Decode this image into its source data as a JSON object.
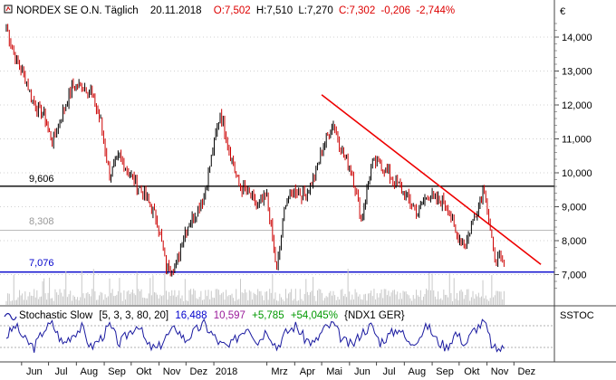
{
  "header": {
    "symbol": "NORDEX SE O.N. Täglich",
    "date": "20.11.2018",
    "open": "O:7,502",
    "high": "H:7,510",
    "low": "L:7,270",
    "close": "C:7,302",
    "change": "-0,206",
    "change_pct": "-2,744%"
  },
  "currency_label": "€",
  "colors": {
    "bar": "#000000",
    "down_bar": "#cc0000",
    "trendline": "#ee0000",
    "level_black": "#000000",
    "level_gray": "#bbbbbb",
    "level_blue": "#0000cc",
    "stoch_line": "#1a1aa0",
    "positive": "#009900",
    "negative": "#dd0000",
    "grid": "#d0d0d0"
  },
  "levels": [
    {
      "label": "9,606",
      "value": 9.606,
      "color": "level_black"
    },
    {
      "label": "8,308",
      "value": 8.308,
      "color": "level_gray"
    },
    {
      "label": "7,076",
      "value": 7.076,
      "color": "level_blue"
    }
  ],
  "stochastic": {
    "name": "Stochastic Slow",
    "params": "[5, 3, 3, 80, 20]",
    "v1": "16,488",
    "v2": "10,597",
    "change": "+5,785",
    "change_pct": "+54,045%",
    "ref": "{NDX1 GER}",
    "panel_label": "SSTOC"
  },
  "chart_data": {
    "type": "line",
    "title": "NORDEX SE O.N. Täglich",
    "ylabel": "€",
    "y_ticks": [
      7000,
      8000,
      9000,
      10000,
      11000,
      12000,
      13000,
      14000
    ],
    "y_tick_labels": [
      "7,000",
      "8,000",
      "9,000",
      "10,000",
      "11,000",
      "12,000",
      "13,000",
      "14,000"
    ],
    "x_tick_labels": [
      "Jun",
      "Jul",
      "Aug",
      "Sep",
      "Okt",
      "Nov",
      "Dez",
      "2018",
      "Mrz",
      "Apr",
      "Mai",
      "Jun",
      "Jul",
      "Aug",
      "Sep",
      "Okt",
      "Nov",
      "Dez"
    ],
    "x": [
      "2017-05-15",
      "2017-05-25",
      "2017-06-05",
      "2017-06-15",
      "2017-06-26",
      "2017-07-05",
      "2017-07-17",
      "2017-07-27",
      "2017-08-07",
      "2017-08-17",
      "2017-08-28",
      "2017-09-07",
      "2017-09-18",
      "2017-09-28",
      "2017-10-09",
      "2017-10-19",
      "2017-10-30",
      "2017-11-09",
      "2017-11-20",
      "2017-11-30",
      "2017-12-11",
      "2017-12-21",
      "2018-01-08",
      "2018-01-18",
      "2018-01-29",
      "2018-02-08",
      "2018-02-19",
      "2018-03-01",
      "2018-03-12",
      "2018-03-22",
      "2018-04-02",
      "2018-04-12",
      "2018-04-23",
      "2018-05-03",
      "2018-05-14",
      "2018-05-24",
      "2018-06-04",
      "2018-06-14",
      "2018-06-25",
      "2018-07-05",
      "2018-07-16",
      "2018-07-26",
      "2018-08-06",
      "2018-08-16",
      "2018-08-27",
      "2018-09-06",
      "2018-09-17",
      "2018-09-27",
      "2018-10-08",
      "2018-10-18",
      "2018-10-29",
      "2018-11-08",
      "2018-11-20"
    ],
    "series": [
      {
        "values": [
          14.3,
          13.4,
          12.8,
          12.0,
          11.7,
          10.9,
          11.8,
          12.5,
          12.6,
          12.4,
          11.5,
          9.9,
          10.5,
          10.0,
          9.6,
          9.2,
          8.6,
          7.2,
          7.3,
          8.3,
          8.8,
          9.3,
          11.8,
          10.7,
          9.6,
          9.4,
          9.0,
          9.3,
          7.1,
          9.2,
          9.5,
          9.3,
          9.9,
          10.8,
          11.5,
          10.6,
          10.0,
          8.6,
          10.2,
          10.3,
          9.9,
          9.6,
          9.2,
          8.8,
          9.4,
          9.2,
          9.1,
          8.2,
          7.9,
          8.7,
          9.6,
          7.6,
          7.302
        ]
      }
    ],
    "trendline": {
      "x": [
        "2018-05-01",
        "2018-12-31"
      ],
      "values": [
        12.3,
        7.3
      ]
    },
    "stochastic_values": [
      50,
      80,
      40,
      20,
      70,
      85,
      30,
      55,
      75,
      20,
      45,
      80,
      30,
      60,
      85,
      25,
      15,
      50,
      75,
      40,
      65,
      85,
      30,
      20,
      55,
      80,
      35,
      70,
      20,
      60,
      80,
      45,
      30,
      70,
      85,
      40,
      25,
      60,
      80,
      35,
      55,
      75,
      30,
      45,
      80,
      40,
      20,
      60,
      30,
      70,
      90,
      15,
      16.488
    ],
    "grid": true,
    "legend": "none"
  }
}
